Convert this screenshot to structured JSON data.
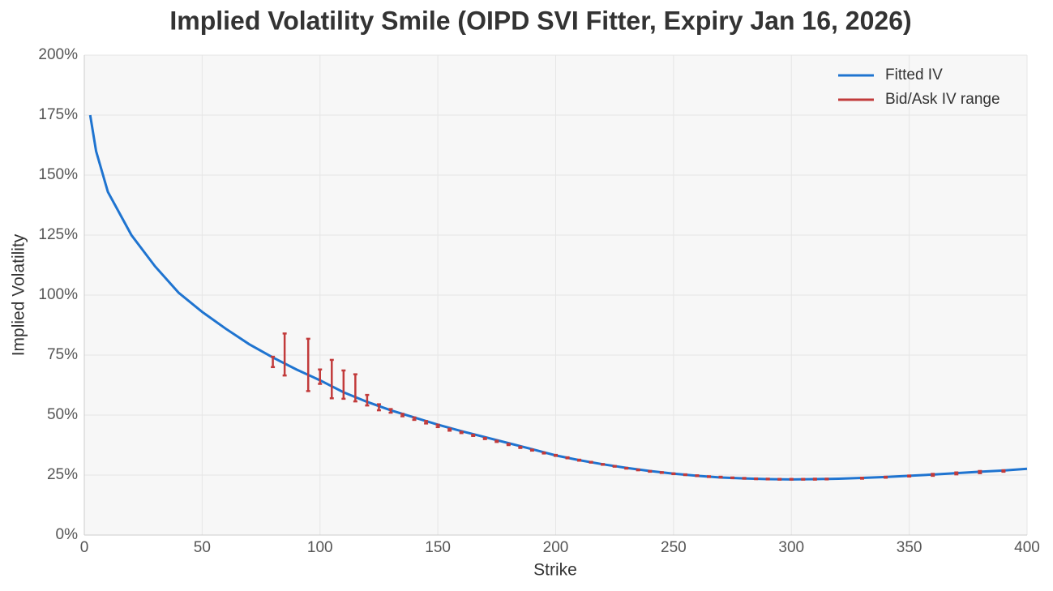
{
  "chart_data": {
    "type": "line",
    "title": "Implied Volatility Smile (OIPD SVI Fitter, Expiry Jan 16, 2026)",
    "x_label": "Strike",
    "y_label": "Implied Volatility",
    "xlim": [
      0,
      400
    ],
    "xticks": [
      0,
      50,
      100,
      150,
      200,
      250,
      300,
      350,
      400
    ],
    "ylim": [
      0,
      200
    ],
    "yticks": [
      {
        "value": 0,
        "label": "0%"
      },
      {
        "value": 25,
        "label": "25%"
      },
      {
        "value": 50,
        "label": "50%"
      },
      {
        "value": 75,
        "label": "75%"
      },
      {
        "value": 100,
        "label": "100%"
      },
      {
        "value": 125,
        "label": "125%"
      },
      {
        "value": 150,
        "label": "150%"
      },
      {
        "value": 175,
        "label": "175%"
      },
      {
        "value": 200,
        "label": "200%"
      }
    ],
    "grid": true,
    "legend": "upper right",
    "series": [
      {
        "name": "Fitted IV",
        "type": "line",
        "color": "#1f74d0",
        "x": [
          2.5,
          5,
          10,
          20,
          30,
          40,
          50,
          60,
          70,
          80,
          90,
          100,
          110,
          120,
          130,
          140,
          150,
          160,
          170,
          180,
          190,
          200,
          210,
          220,
          230,
          240,
          250,
          260,
          270,
          280,
          290,
          300,
          310,
          320,
          330,
          340,
          350,
          360,
          370,
          380,
          390,
          400
        ],
        "values": [
          175,
          160,
          143,
          125,
          112,
          101,
          93,
          86,
          79.5,
          74,
          69,
          64.5,
          59.5,
          55.5,
          52,
          49,
          46,
          43.3,
          40.8,
          38.3,
          35.8,
          33.2,
          31.2,
          29.5,
          28,
          26.7,
          25.6,
          24.7,
          24,
          23.6,
          23.3,
          23.2,
          23.3,
          23.5,
          23.8,
          24.2,
          24.7,
          25.2,
          25.8,
          26.4,
          26.9,
          27.6
        ]
      },
      {
        "name": "Bid/Ask IV range",
        "type": "errorbar",
        "color": "#c23b3b",
        "x": [
          80,
          85,
          95,
          100,
          105,
          110,
          115,
          120,
          125,
          130,
          135,
          140,
          145,
          150,
          155,
          160,
          165,
          170,
          175,
          180,
          185,
          190,
          195,
          200,
          205,
          210,
          215,
          220,
          225,
          230,
          235,
          240,
          245,
          250,
          255,
          260,
          265,
          270,
          275,
          280,
          285,
          290,
          295,
          300,
          305,
          310,
          315,
          330,
          340,
          350,
          360,
          370,
          380,
          390
        ],
        "low": [
          70,
          66.5,
          60,
          63,
          57,
          56.8,
          55.7,
          54,
          52,
          51,
          49.5,
          48,
          46.5,
          45,
          43.5,
          42.5,
          41.3,
          40,
          38.8,
          37.5,
          36.3,
          35.2,
          34,
          33,
          32,
          31,
          30.2,
          29.3,
          28.5,
          27.7,
          27,
          26.4,
          25.9,
          25.4,
          25,
          24.6,
          24.2,
          24,
          23.7,
          23.5,
          23.3,
          23.2,
          23.1,
          23.1,
          23.1,
          23.1,
          23.2,
          23.5,
          23.9,
          24.4,
          24.7,
          25.3,
          25.8,
          26.4
        ],
        "high": [
          74.3,
          84,
          81.8,
          69,
          73,
          68.6,
          67,
          58.4,
          54.5,
          52.5,
          50.5,
          49,
          47.5,
          46,
          44.3,
          43,
          41.8,
          40.5,
          39.3,
          38,
          36.8,
          35.6,
          34.4,
          33.4,
          32.4,
          31.4,
          30.5,
          29.6,
          28.8,
          28,
          27.3,
          26.7,
          26.2,
          25.7,
          25.3,
          24.9,
          24.5,
          24.3,
          24,
          23.8,
          23.6,
          23.5,
          23.4,
          23.4,
          23.4,
          23.5,
          23.5,
          23.9,
          24.3,
          24.8,
          25.5,
          26.1,
          26.7,
          27
        ]
      }
    ]
  }
}
